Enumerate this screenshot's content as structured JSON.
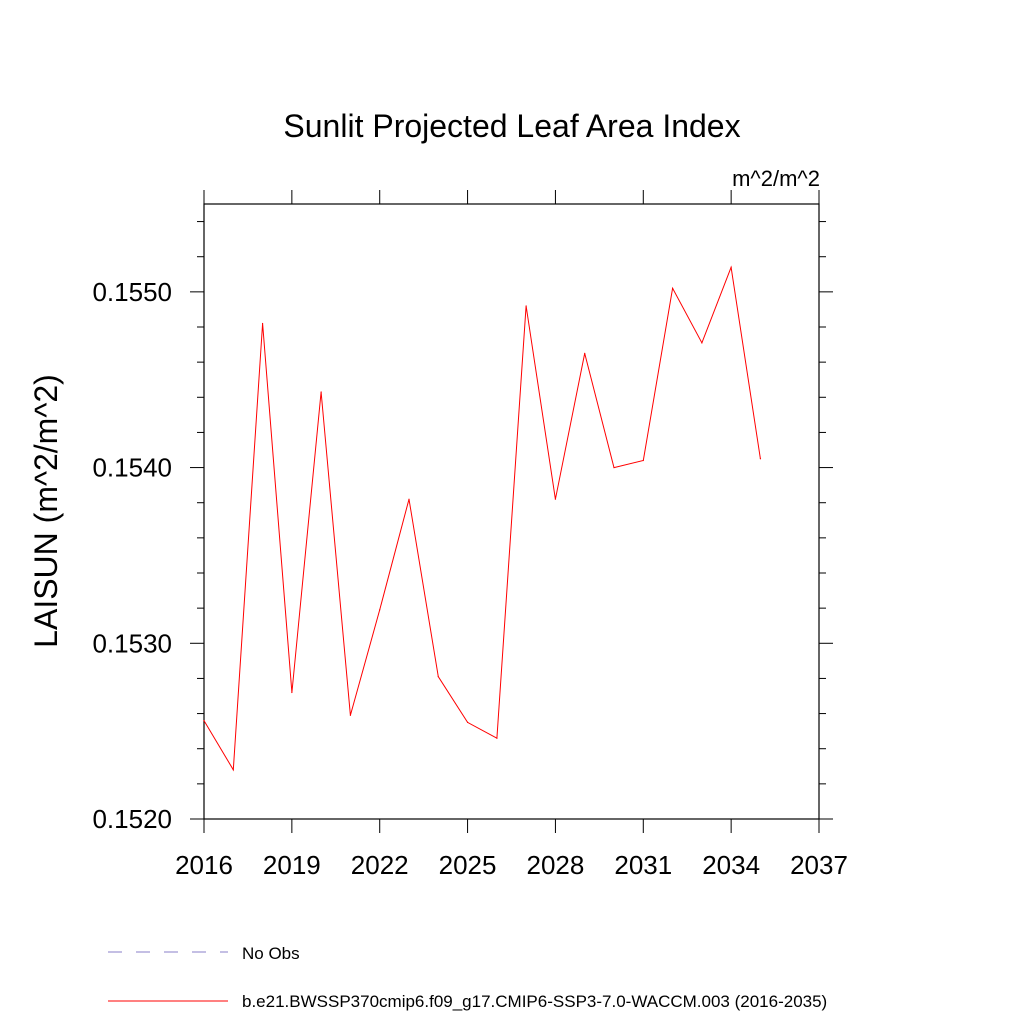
{
  "chart_data": {
    "type": "line",
    "title": "Sunlit Projected Leaf Area Index",
    "units_label": "m^2/m^2",
    "ylabel": "LAISUN  (m^2/m^2)",
    "xlabel": "",
    "xlim": [
      2016,
      2037
    ],
    "ylim": [
      0.152,
      0.1555
    ],
    "x_ticks": [
      2016,
      2019,
      2022,
      2025,
      2028,
      2031,
      2034,
      2037
    ],
    "x_tick_labels": [
      "2016",
      "2019",
      "2022",
      "2025",
      "2028",
      "2031",
      "2034",
      "2037"
    ],
    "y_ticks": [
      0.152,
      0.153,
      0.154,
      0.155
    ],
    "y_tick_labels": [
      "0.1520",
      "0.1530",
      "0.1540",
      "0.1550"
    ],
    "grid": false,
    "legend_position": "bottom",
    "series": [
      {
        "name": "b.e21.BWSSP370cmip6.f09_g17.CMIP6-SSP3-7.0-WACCM.003 (2016-2035)",
        "color": "#ff0000",
        "style": "solid",
        "x": [
          2016,
          2017,
          2018,
          2019,
          2020,
          2021,
          2022,
          2023,
          2024,
          2025,
          2026,
          2027,
          2028,
          2029,
          2030,
          2031,
          2032,
          2033,
          2034,
          2035
        ],
        "values": [
          0.15256,
          0.15228,
          0.15482,
          0.15272,
          0.15443,
          0.15259,
          0.15319,
          0.15382,
          0.15281,
          0.15255,
          0.15246,
          0.15492,
          0.15382,
          0.15465,
          0.154,
          0.15404,
          0.15502,
          0.15471,
          0.15514,
          0.15405
        ]
      }
    ],
    "legend": [
      {
        "label": "No Obs",
        "color": "#8a7fc8",
        "style": "dashed"
      },
      {
        "label": "b.e21.BWSSP370cmip6.f09_g17.CMIP6-SSP3-7.0-WACCM.003 (2016-2035)",
        "color": "#ff0000",
        "style": "solid"
      }
    ]
  }
}
